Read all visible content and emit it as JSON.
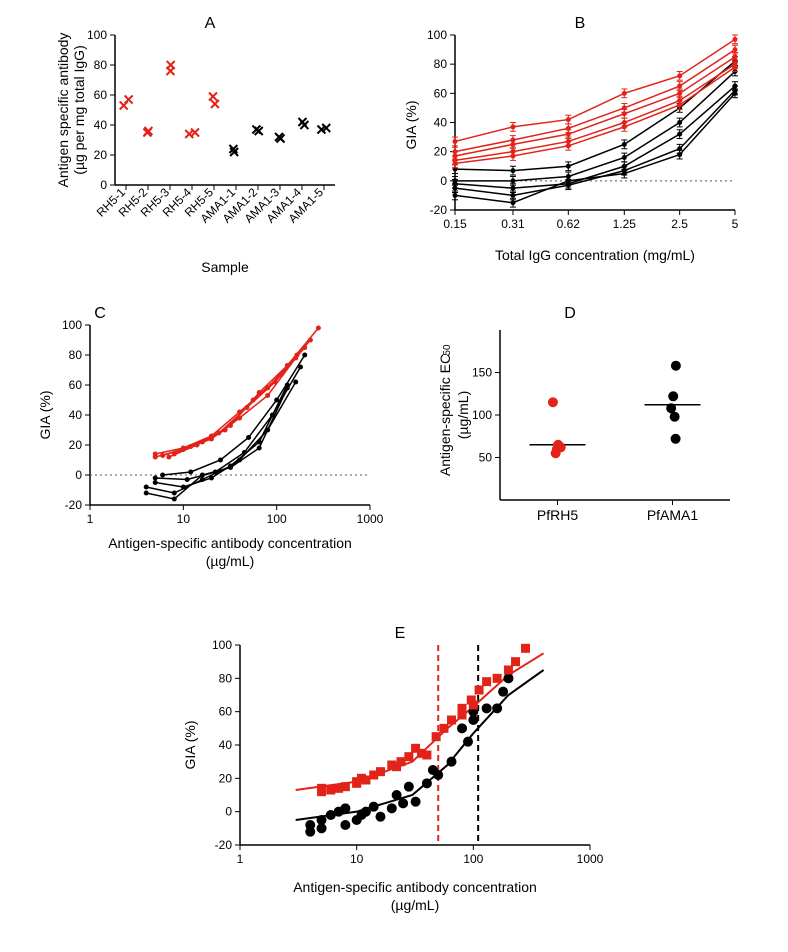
{
  "colors": {
    "red": "#e2231a",
    "black": "#000000",
    "bg": "#ffffff",
    "dotline": "#555555"
  },
  "fonts": {
    "label": 14,
    "tick": 12,
    "panel": 16
  },
  "panelA": {
    "label": "A",
    "type": "scatter",
    "xlabel": "Sample",
    "ylabel": "Antigen specific antibody\n(µg per mg total IgG)",
    "ylim": [
      0,
      100
    ],
    "ytick_step": 20,
    "categories": [
      "RH5-1",
      "RH5-2",
      "RH5-3",
      "RH5-4",
      "RH5-5",
      "AMA1-1",
      "AMA1-2",
      "AMA1-3",
      "AMA1-4",
      "AMA1-5"
    ],
    "series": [
      {
        "color": "#e2231a",
        "marker": "x",
        "points": [
          [
            0,
            53
          ],
          [
            0,
            57
          ],
          [
            1,
            35
          ],
          [
            1,
            36
          ],
          [
            2,
            76
          ],
          [
            2,
            80
          ],
          [
            3,
            34
          ],
          [
            3,
            35
          ],
          [
            4,
            54
          ],
          [
            4,
            59
          ]
        ]
      },
      {
        "color": "#000000",
        "marker": "x",
        "points": [
          [
            5,
            22
          ],
          [
            5,
            24
          ],
          [
            6,
            36
          ],
          [
            6,
            37
          ],
          [
            7,
            31
          ],
          [
            7,
            32
          ],
          [
            8,
            40
          ],
          [
            8,
            42
          ],
          [
            9,
            37
          ],
          [
            9,
            38
          ]
        ]
      }
    ],
    "tick_rotation": -45
  },
  "panelB": {
    "label": "B",
    "type": "line",
    "xlabel": "Total IgG concentration  (mg/mL)",
    "ylabel": "GIA (%)",
    "ylim": [
      -20,
      100
    ],
    "yticks": [
      -20,
      0,
      20,
      40,
      60,
      80,
      100
    ],
    "xticks": [
      0.15,
      0.31,
      0.62,
      1.25,
      2.5,
      5
    ],
    "xscale": "log",
    "zero_line": true,
    "error_bars": true,
    "series_red": [
      {
        "color": "#e2231a",
        "y": [
          27,
          37,
          42,
          60,
          72,
          97
        ],
        "err": [
          3,
          3,
          3,
          3,
          3,
          3
        ]
      },
      {
        "color": "#e2231a",
        "y": [
          20,
          28,
          36,
          50,
          65,
          90
        ],
        "err": [
          3,
          3,
          3,
          3,
          3,
          3
        ]
      },
      {
        "color": "#e2231a",
        "y": [
          17,
          25,
          32,
          46,
          60,
          85
        ],
        "err": [
          3,
          3,
          3,
          3,
          3,
          3
        ]
      },
      {
        "color": "#e2231a",
        "y": [
          14,
          20,
          27,
          40,
          55,
          80
        ],
        "err": [
          3,
          3,
          3,
          3,
          3,
          3
        ]
      },
      {
        "color": "#e2231a",
        "y": [
          12,
          17,
          24,
          37,
          52,
          78
        ],
        "err": [
          3,
          3,
          3,
          3,
          3,
          3
        ]
      }
    ],
    "series_black": [
      {
        "color": "#000000",
        "y": [
          8,
          7,
          10,
          25,
          50,
          82
        ],
        "err": [
          3,
          3,
          3,
          3,
          3,
          3
        ]
      },
      {
        "color": "#000000",
        "y": [
          0,
          0,
          3,
          16,
          40,
          75
        ],
        "err": [
          3,
          3,
          3,
          3,
          3,
          3
        ]
      },
      {
        "color": "#000000",
        "y": [
          -2,
          -5,
          -2,
          10,
          32,
          65
        ],
        "err": [
          3,
          3,
          3,
          3,
          3,
          3
        ]
      },
      {
        "color": "#000000",
        "y": [
          -5,
          -10,
          -3,
          7,
          22,
          62
        ],
        "err": [
          3,
          3,
          3,
          3,
          3,
          3
        ]
      },
      {
        "color": "#000000",
        "y": [
          -10,
          -15,
          0,
          5,
          18,
          60
        ],
        "err": [
          3,
          3,
          3,
          3,
          3,
          3
        ]
      }
    ]
  },
  "panelC": {
    "label": "C",
    "type": "line",
    "xlabel": "Antigen-specific antibody concentration\n(µg/mL)",
    "ylabel": "GIA (%)",
    "ylim": [
      -20,
      100
    ],
    "yticks": [
      -20,
      0,
      20,
      40,
      60,
      80,
      100
    ],
    "xscale": "log",
    "xlim": [
      1,
      1000
    ],
    "xticks": [
      1,
      10,
      100,
      1000
    ],
    "zero_line": true,
    "series_red": [
      {
        "color": "#e2231a",
        "x": [
          8,
          16,
          32,
          65,
          130,
          280
        ],
        "y": [
          14,
          22,
          33,
          55,
          73,
          98
        ]
      },
      {
        "color": "#e2231a",
        "x": [
          7,
          14,
          28,
          56,
          112,
          230
        ],
        "y": [
          12,
          20,
          30,
          50,
          67,
          90
        ]
      },
      {
        "color": "#e2231a",
        "x": [
          6,
          12,
          24,
          48,
          96,
          200
        ],
        "y": [
          13,
          19,
          28,
          45,
          62,
          85
        ]
      },
      {
        "color": "#e2231a",
        "x": [
          5,
          10,
          20,
          40,
          80,
          165
        ],
        "y": [
          14,
          18,
          26,
          42,
          58,
          80
        ]
      },
      {
        "color": "#e2231a",
        "x": [
          5,
          10,
          20,
          40,
          80,
          160
        ],
        "y": [
          12,
          17,
          24,
          38,
          53,
          78
        ]
      }
    ],
    "series_black": [
      {
        "color": "#000000",
        "x": [
          6,
          12,
          25,
          50,
          100,
          200
        ],
        "y": [
          0,
          2,
          10,
          25,
          50,
          80
        ]
      },
      {
        "color": "#000000",
        "x": [
          5,
          11,
          22,
          45,
          90,
          180
        ],
        "y": [
          -2,
          -3,
          2,
          15,
          40,
          72
        ]
      },
      {
        "color": "#000000",
        "x": [
          5,
          10,
          20,
          40,
          80,
          160
        ],
        "y": [
          -5,
          -8,
          -2,
          10,
          30,
          62
        ]
      },
      {
        "color": "#000000",
        "x": [
          4,
          8,
          16,
          32,
          65,
          130
        ],
        "y": [
          -8,
          -12,
          -3,
          6,
          22,
          60
        ]
      },
      {
        "color": "#000000",
        "x": [
          4,
          8,
          16,
          32,
          65,
          130
        ],
        "y": [
          -12,
          -16,
          0,
          5,
          18,
          58
        ]
      }
    ]
  },
  "panelD": {
    "label": "D",
    "type": "scatter",
    "xlabel": "",
    "ylabel": "Antigen-specific EC₅₀\n(µg/mL)",
    "categories": [
      "PfRH5",
      "PfAMA1"
    ],
    "ylim": [
      0,
      200
    ],
    "yticks": [
      50,
      100,
      150
    ],
    "medians": [
      65,
      112
    ],
    "series": [
      {
        "color": "#e2231a",
        "marker": "circle-filled",
        "points": [
          [
            0,
            55
          ],
          [
            0,
            60
          ],
          [
            0,
            62
          ],
          [
            0,
            65
          ],
          [
            0,
            115
          ]
        ]
      },
      {
        "color": "#000000",
        "marker": "circle-filled",
        "points": [
          [
            1,
            72
          ],
          [
            1,
            98
          ],
          [
            1,
            108
          ],
          [
            1,
            122
          ],
          [
            1,
            158
          ]
        ]
      }
    ]
  },
  "panelE": {
    "label": "E",
    "type": "scatter+fit",
    "xlabel": "Antigen-specific antibody concentration\n(µg/mL)",
    "ylabel": "GIA (%)",
    "ylim": [
      -20,
      100
    ],
    "yticks": [
      -20,
      0,
      20,
      40,
      60,
      80,
      100
    ],
    "xscale": "log",
    "xlim": [
      1,
      1000
    ],
    "xticks": [
      1,
      10,
      100,
      1000
    ],
    "vline_red": 50,
    "vline_black": 110,
    "red_points": [
      [
        5,
        14
      ],
      [
        5,
        12
      ],
      [
        6,
        13
      ],
      [
        7,
        14
      ],
      [
        8,
        15
      ],
      [
        10,
        18
      ],
      [
        10,
        17
      ],
      [
        11,
        20
      ],
      [
        12,
        19
      ],
      [
        14,
        22
      ],
      [
        16,
        24
      ],
      [
        20,
        28
      ],
      [
        22,
        27
      ],
      [
        24,
        30
      ],
      [
        28,
        33
      ],
      [
        32,
        38
      ],
      [
        36,
        35
      ],
      [
        40,
        34
      ],
      [
        48,
        45
      ],
      [
        56,
        50
      ],
      [
        65,
        55
      ],
      [
        80,
        58
      ],
      [
        80,
        62
      ],
      [
        96,
        67
      ],
      [
        100,
        64
      ],
      [
        112,
        73
      ],
      [
        130,
        78
      ],
      [
        160,
        80
      ],
      [
        200,
        85
      ],
      [
        230,
        90
      ],
      [
        280,
        98
      ]
    ],
    "black_points": [
      [
        4,
        -12
      ],
      [
        4,
        -8
      ],
      [
        5,
        -10
      ],
      [
        5,
        -5
      ],
      [
        6,
        -2
      ],
      [
        7,
        0
      ],
      [
        8,
        -8
      ],
      [
        8,
        2
      ],
      [
        10,
        -5
      ],
      [
        11,
        -2
      ],
      [
        12,
        0
      ],
      [
        14,
        3
      ],
      [
        16,
        -3
      ],
      [
        20,
        2
      ],
      [
        22,
        10
      ],
      [
        25,
        5
      ],
      [
        28,
        15
      ],
      [
        32,
        6
      ],
      [
        40,
        17
      ],
      [
        45,
        25
      ],
      [
        50,
        22
      ],
      [
        65,
        30
      ],
      [
        80,
        50
      ],
      [
        90,
        42
      ],
      [
        100,
        55
      ],
      [
        100,
        60
      ],
      [
        130,
        62
      ],
      [
        160,
        62
      ],
      [
        180,
        72
      ],
      [
        200,
        80
      ]
    ],
    "red_fit": [
      [
        3,
        13
      ],
      [
        10,
        18
      ],
      [
        30,
        30
      ],
      [
        60,
        50
      ],
      [
        100,
        63
      ],
      [
        200,
        82
      ],
      [
        400,
        95
      ]
    ],
    "black_fit": [
      [
        3,
        -5
      ],
      [
        10,
        0
      ],
      [
        30,
        10
      ],
      [
        60,
        28
      ],
      [
        100,
        47
      ],
      [
        200,
        70
      ],
      [
        400,
        85
      ]
    ]
  }
}
